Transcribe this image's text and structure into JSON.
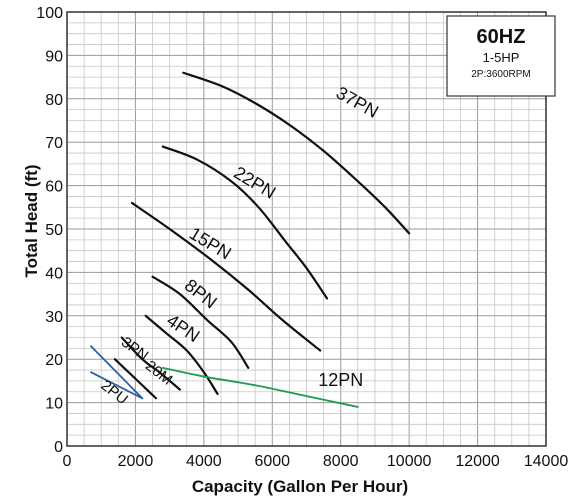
{
  "chart_data": {
    "type": "line",
    "title": "",
    "xlabel": "Capacity (Gallon Per Hour)",
    "ylabel": "Total Head (ft)",
    "xlim": [
      0,
      14000
    ],
    "ylim": [
      0,
      100
    ],
    "x_ticks": [
      "0",
      "2000",
      "4000",
      "6000",
      "8000",
      "10000",
      "12000",
      "14000"
    ],
    "y_ticks": [
      "0",
      "10",
      "20",
      "30",
      "40",
      "50",
      "60",
      "70",
      "80",
      "90",
      "100"
    ],
    "grid": true,
    "legend": {
      "placement": "top-right",
      "title": "60HZ",
      "line1": "1-5HP",
      "line2": "2P:3600RPM"
    },
    "colors": {
      "default": "#111111",
      "blue": "#2f5fa8",
      "green": "#1e9a52"
    },
    "series": [
      {
        "name": "37PN",
        "color": "default",
        "x": [
          3400,
          4500,
          5500,
          6500,
          7500,
          8500,
          9300,
          10000
        ],
        "y": [
          86,
          83,
          79,
          74,
          68,
          61,
          55,
          49
        ]
      },
      {
        "name": "22PN",
        "color": "default",
        "x": [
          2800,
          3800,
          4800,
          5600,
          6400,
          7000,
          7600
        ],
        "y": [
          69,
          66,
          61,
          55,
          47,
          41,
          34
        ]
      },
      {
        "name": "15PN",
        "color": "default",
        "x": [
          1900,
          3000,
          4200,
          5300,
          6300,
          7400
        ],
        "y": [
          56,
          50,
          43,
          36,
          29,
          22
        ]
      },
      {
        "name": "8PN",
        "color": "default",
        "x": [
          2500,
          3300,
          4100,
          4800,
          5300
        ],
        "y": [
          39,
          35,
          29,
          24,
          18
        ]
      },
      {
        "name": "4PN",
        "color": "default",
        "x": [
          2300,
          2900,
          3500,
          4000,
          4400
        ],
        "y": [
          30,
          26,
          22,
          17,
          12
        ]
      },
      {
        "name": "3PN",
        "color": "default",
        "x": [
          1600,
          2200,
          2700,
          3300
        ],
        "y": [
          25,
          20,
          17,
          13
        ]
      },
      {
        "name": "20M",
        "color": "default",
        "x": [
          1400,
          1800,
          2200,
          2600
        ],
        "y": [
          20,
          17,
          14,
          11
        ]
      },
      {
        "name": "2PU",
        "color": "blue",
        "x": [
          700,
          1200,
          1700,
          2200
        ],
        "y": [
          17,
          15,
          13,
          11
        ]
      },
      {
        "name": "",
        "color": "blue",
        "x": [
          700,
          1200,
          1700,
          2200
        ],
        "y": [
          23,
          19,
          15,
          11
        ]
      },
      {
        "name": "12PN",
        "color": "green",
        "x": [
          2800,
          4000,
          5500,
          7000,
          8500
        ],
        "y": [
          18,
          16,
          14,
          11.5,
          9
        ]
      }
    ]
  }
}
